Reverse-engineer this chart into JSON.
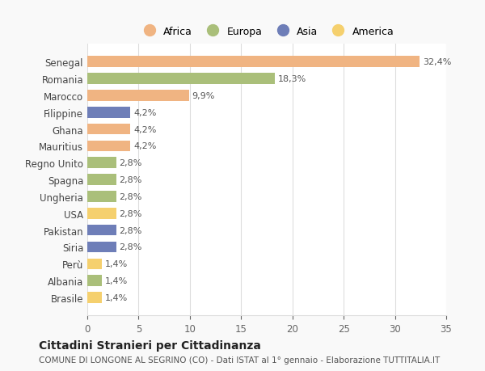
{
  "categories": [
    "Senegal",
    "Romania",
    "Marocco",
    "Filippine",
    "Ghana",
    "Mauritius",
    "Regno Unito",
    "Spagna",
    "Ungheria",
    "USA",
    "Pakistan",
    "Siria",
    "Perù",
    "Albania",
    "Brasile"
  ],
  "values": [
    32.4,
    18.3,
    9.9,
    4.2,
    4.2,
    4.2,
    2.8,
    2.8,
    2.8,
    2.8,
    2.8,
    2.8,
    1.4,
    1.4,
    1.4
  ],
  "labels": [
    "32,4%",
    "18,3%",
    "9,9%",
    "4,2%",
    "4,2%",
    "4,2%",
    "2,8%",
    "2,8%",
    "2,8%",
    "2,8%",
    "2,8%",
    "2,8%",
    "1,4%",
    "1,4%",
    "1,4%"
  ],
  "colors": [
    "#F0B482",
    "#AABF7A",
    "#F0B482",
    "#6E7EB8",
    "#F0B482",
    "#F0B482",
    "#AABF7A",
    "#AABF7A",
    "#AABF7A",
    "#F5D06E",
    "#6E7EB8",
    "#6E7EB8",
    "#F5D06E",
    "#AABF7A",
    "#F5D06E"
  ],
  "legend_labels": [
    "Africa",
    "Europa",
    "Asia",
    "America"
  ],
  "legend_colors": [
    "#F0B482",
    "#AABF7A",
    "#6E7EB8",
    "#F5D06E"
  ],
  "title": "Cittadini Stranieri per Cittadinanza",
  "subtitle": "COMUNE DI LONGONE AL SEGRINO (CO) - Dati ISTAT al 1° gennaio - Elaborazione TUTTITALIA.IT",
  "xlim": [
    0,
    35
  ],
  "xticks": [
    0,
    5,
    10,
    15,
    20,
    25,
    30,
    35
  ],
  "bg_color": "#f9f9f9",
  "bar_bg_color": "#ffffff",
  "grid_color": "#dddddd"
}
